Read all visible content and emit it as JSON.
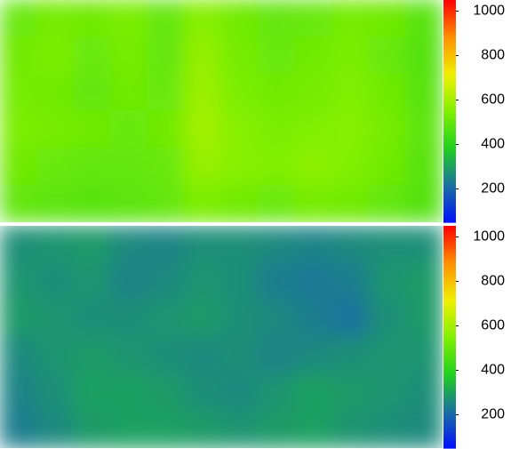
{
  "chart_data": [
    {
      "type": "heatmap",
      "colormap": [
        "#0010ff",
        "#1a70a0",
        "#20d020",
        "#80f000",
        "#f0f000",
        "#ff9000",
        "#ff0000"
      ],
      "clim": [
        50,
        1050
      ],
      "ticks": [
        200,
        400,
        600,
        800,
        1000
      ],
      "z": [
        [
          510,
          530,
          520,
          540,
          500,
          560,
          520,
          500,
          510,
          530,
          520,
          480
        ],
        [
          520,
          540,
          510,
          530,
          500,
          580,
          530,
          510,
          520,
          540,
          510,
          470
        ],
        [
          530,
          520,
          500,
          520,
          510,
          590,
          540,
          520,
          530,
          550,
          520,
          480
        ],
        [
          540,
          530,
          520,
          510,
          520,
          600,
          560,
          540,
          550,
          560,
          530,
          490
        ],
        [
          520,
          510,
          500,
          500,
          510,
          580,
          560,
          550,
          570,
          550,
          520,
          480
        ],
        [
          500,
          490,
          480,
          490,
          500,
          540,
          520,
          510,
          530,
          520,
          500,
          470
        ]
      ]
    },
    {
      "type": "heatmap",
      "colormap": [
        "#0010ff",
        "#1a70a0",
        "#20d020",
        "#80f000",
        "#f0f000",
        "#ff9000",
        "#ff0000"
      ],
      "clim": [
        50,
        1050
      ],
      "ticks": [
        200,
        400,
        600,
        800,
        1000
      ],
      "z": [
        [
          270,
          280,
          290,
          260,
          250,
          270,
          270,
          260,
          250,
          260,
          270,
          270
        ],
        [
          280,
          270,
          280,
          250,
          260,
          280,
          270,
          240,
          230,
          240,
          280,
          290
        ],
        [
          290,
          280,
          270,
          270,
          280,
          290,
          270,
          260,
          240,
          220,
          270,
          290
        ],
        [
          260,
          280,
          290,
          280,
          270,
          260,
          270,
          250,
          260,
          270,
          280,
          280
        ],
        [
          250,
          270,
          300,
          300,
          290,
          270,
          260,
          280,
          300,
          290,
          280,
          270
        ],
        [
          240,
          260,
          290,
          300,
          300,
          290,
          280,
          290,
          300,
          280,
          270,
          260
        ]
      ]
    }
  ]
}
